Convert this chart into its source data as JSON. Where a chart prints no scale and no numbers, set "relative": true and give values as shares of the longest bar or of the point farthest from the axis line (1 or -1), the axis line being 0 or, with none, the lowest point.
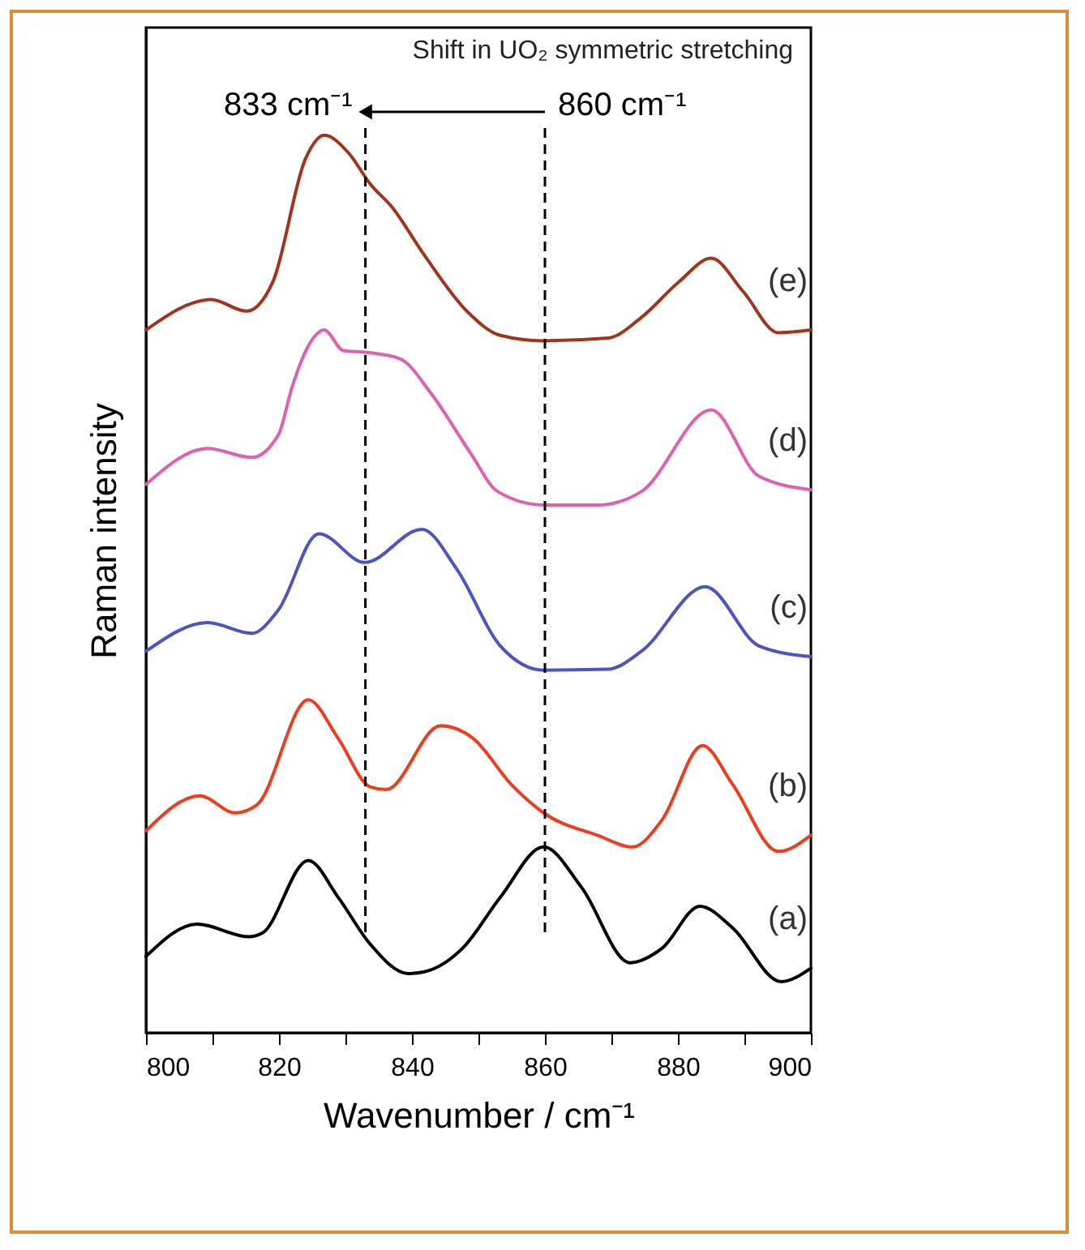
{
  "chart_data": {
    "type": "line",
    "title": "Shift in UO₂ symmetric stretching",
    "xlabel": "Wavenumber / cm⁻¹",
    "ylabel": "Raman intensity",
    "relative": true,
    "xlim": [
      800,
      900
    ],
    "xticks": [
      800,
      {
        "value": 810,
        "label": null
      },
      820,
      {
        "value": 830,
        "label": null
      },
      840,
      {
        "value": 850,
        "label": null
      },
      860,
      {
        "value": 870,
        "label": null
      },
      880,
      {
        "value": 890,
        "label": null
      },
      900
    ],
    "grid": false,
    "legend": false,
    "marker": "none",
    "line_style": "solid",
    "ref_lines": [
      {
        "axis": "x",
        "value": 833,
        "label": "833 cm⁻¹",
        "line_style": "dashed",
        "color": "#000000"
      },
      {
        "axis": "x",
        "value": 860,
        "label": "860 cm⁻¹",
        "line_style": "dashed",
        "color": "#000000"
      }
    ],
    "series": [
      {
        "name": "(a)",
        "color": "#000000",
        "x": [
          800,
          807.7,
          815.5,
          817.5,
          824.4,
          828.9,
          833.7,
          839.4,
          841.9,
          847.6,
          853.3,
          859.8,
          865.5,
          872.8,
          877.6,
          883.3,
          888.2,
          895.5,
          900
        ],
        "values": [
          0.085,
          0.121,
          0.107,
          0.111,
          0.192,
          0.151,
          0.099,
          0.066,
          0.068,
          0.094,
          0.151,
          0.207,
          0.162,
          0.078,
          0.094,
          0.141,
          0.117,
          0.057,
          0.072
        ]
      },
      {
        "name": "(b)",
        "color": "#f03c1e",
        "x": [
          800,
          808.1,
          813.4,
          816.7,
          824.4,
          828.9,
          833.7,
          836.1,
          844.3,
          849.2,
          854.9,
          859.8,
          867.9,
          873.2,
          877.6,
          883.7,
          888.2,
          895.1,
          900
        ],
        "values": [
          0.225,
          0.264,
          0.245,
          0.254,
          0.371,
          0.328,
          0.274,
          0.271,
          0.342,
          0.328,
          0.277,
          0.245,
          0.22,
          0.207,
          0.237,
          0.32,
          0.277,
          0.202,
          0.22
        ]
      },
      {
        "name": "(c)",
        "color": "#4a55c0",
        "x": [
          800,
          809.3,
          815.9,
          819.9,
          826,
          832.9,
          841.5,
          846.7,
          853.3,
          859.8,
          869.5,
          874.5,
          884.1,
          892.2,
          900
        ],
        "values": [
          0.425,
          0.457,
          0.445,
          0.471,
          0.556,
          0.524,
          0.561,
          0.517,
          0.431,
          0.404,
          0.405,
          0.425,
          0.497,
          0.431,
          0.419
        ]
      },
      {
        "name": "(d)",
        "color": "#e060b0",
        "x": [
          800,
          809.3,
          815.9,
          819.9,
          822,
          824.4,
          826.8,
          829.7,
          833.3,
          838.2,
          843,
          848.8,
          852.9,
          859.8,
          868,
          874.5,
          885,
          892.2,
          900
        ],
        "values": [
          0.611,
          0.651,
          0.641,
          0.666,
          0.72,
          0.765,
          0.783,
          0.76,
          0.758,
          0.751,
          0.711,
          0.646,
          0.603,
          0.588,
          0.588,
          0.603,
          0.694,
          0.62,
          0.605
        ]
      },
      {
        "name": "(e)",
        "color": "#a0341c",
        "x": [
          800,
          809.8,
          815.1,
          819.1,
          824,
          826.8,
          830.5,
          833.7,
          837,
          841.9,
          848.4,
          853.3,
          859.8,
          869.5,
          874.5,
          880.2,
          885,
          889.8,
          895.1,
          900
        ],
        "values": [
          0.783,
          0.817,
          0.804,
          0.837,
          0.974,
          1.0,
          0.98,
          0.946,
          0.92,
          0.866,
          0.803,
          0.777,
          0.771,
          0.774,
          0.797,
          0.837,
          0.863,
          0.826,
          0.78,
          0.783
        ]
      }
    ]
  }
}
